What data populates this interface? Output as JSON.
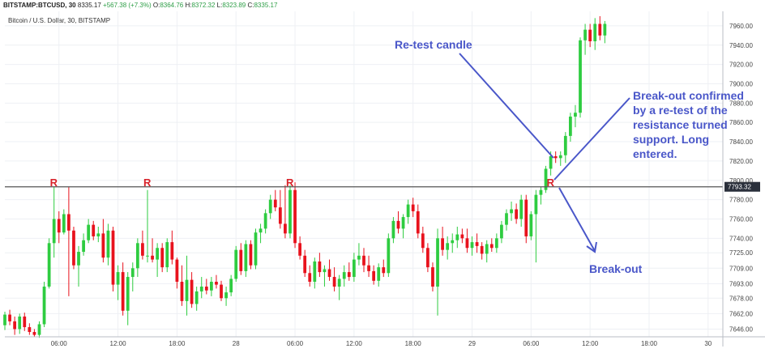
{
  "header": {
    "symbol": "BITSTAMP:BTCUSD, 30",
    "last": "8335.17",
    "change": "+567.38 (+7.3%)",
    "o_label": "O:",
    "o_value": "8364.76",
    "h_label": "H:",
    "h_value": "8372.32",
    "l_label": "L:",
    "l_value": "8323.89",
    "c_label": "C:",
    "c_value": "8335.17"
  },
  "subtitle": "Bitcoin / U.S. Dollar, 30, BITSTAMP",
  "annotations": {
    "retest_label": "Re-test candle",
    "confirm_label": "Break-out confirmed by a re-test of the resistance turned support. Long entered.",
    "breakout_label": "Break-out",
    "r_marker": "R"
  },
  "colors": {
    "up": "#2ecc40",
    "down": "#e8121d",
    "annotation": "#4a57c9",
    "marker": "#d8232a",
    "resistance_line": "#555555",
    "price_tag_bg": "#2a2f3b"
  },
  "chart_data": {
    "type": "candlestick",
    "title": "Bitcoin / U.S. Dollar, 30, BITSTAMP",
    "ylim": [
      7638,
      7975
    ],
    "xlim": [
      0,
      146
    ],
    "grid": true,
    "y_ticks": [
      7646.0,
      7662.0,
      7678.0,
      7693.0,
      7709.0,
      7725.0,
      7740.0,
      7760.0,
      7780.0,
      7800.0,
      7820.0,
      7840.0,
      7860.0,
      7880.0,
      7900.0,
      7920.0,
      7940.0,
      7960.0
    ],
    "x_ticks": [
      {
        "i": 11,
        "label": "06:00"
      },
      {
        "i": 23,
        "label": "12:00"
      },
      {
        "i": 35,
        "label": "18:00"
      },
      {
        "i": 47,
        "label": "28"
      },
      {
        "i": 59,
        "label": "06:00"
      },
      {
        "i": 71,
        "label": "12:00"
      },
      {
        "i": 83,
        "label": "18:00"
      },
      {
        "i": 95,
        "label": "29"
      },
      {
        "i": 107,
        "label": "06:00"
      },
      {
        "i": 119,
        "label": "12:00"
      },
      {
        "i": 131,
        "label": "18:00"
      },
      {
        "i": 143,
        "label": "30"
      }
    ],
    "resistance": 7793.32,
    "resistance_label": "7793.32",
    "r_markers": [
      10,
      29,
      58,
      111
    ],
    "candles": [
      [
        7650,
        7664,
        7645,
        7661
      ],
      [
        7661,
        7666,
        7650,
        7654
      ],
      [
        7654,
        7659,
        7640,
        7646
      ],
      [
        7646,
        7662,
        7641,
        7659
      ],
      [
        7659,
        7663,
        7644,
        7648
      ],
      [
        7648,
        7652,
        7640,
        7643
      ],
      [
        7643,
        7646,
        7638,
        7640
      ],
      [
        7640,
        7654,
        7637,
        7651
      ],
      [
        7651,
        7695,
        7648,
        7690
      ],
      [
        7690,
        7740,
        7688,
        7735
      ],
      [
        7735,
        7793,
        7720,
        7760
      ],
      [
        7760,
        7768,
        7735,
        7746
      ],
      [
        7746,
        7770,
        7744,
        7765
      ],
      [
        7765,
        7793,
        7680,
        7748
      ],
      [
        7748,
        7752,
        7708,
        7712
      ],
      [
        7712,
        7732,
        7690,
        7726
      ],
      [
        7726,
        7745,
        7722,
        7738
      ],
      [
        7738,
        7760,
        7735,
        7754
      ],
      [
        7754,
        7758,
        7738,
        7742
      ],
      [
        7742,
        7752,
        7736,
        7745
      ],
      [
        7745,
        7760,
        7715,
        7720
      ],
      [
        7720,
        7755,
        7712,
        7748
      ],
      [
        7748,
        7752,
        7685,
        7692
      ],
      [
        7692,
        7712,
        7676,
        7705
      ],
      [
        7705,
        7715,
        7660,
        7665
      ],
      [
        7665,
        7705,
        7650,
        7700
      ],
      [
        7700,
        7715,
        7685,
        7709
      ],
      [
        7709,
        7740,
        7700,
        7735
      ],
      [
        7735,
        7748,
        7718,
        7722
      ],
      [
        7722,
        7790,
        7715,
        7722
      ],
      [
        7722,
        7740,
        7715,
        7718
      ],
      [
        7718,
        7735,
        7700,
        7730
      ],
      [
        7730,
        7735,
        7705,
        7710
      ],
      [
        7710,
        7740,
        7705,
        7736
      ],
      [
        7736,
        7748,
        7713,
        7718
      ],
      [
        7718,
        7720,
        7688,
        7695
      ],
      [
        7695,
        7712,
        7670,
        7675
      ],
      [
        7675,
        7722,
        7660,
        7697
      ],
      [
        7697,
        7705,
        7668,
        7672
      ],
      [
        7672,
        7690,
        7665,
        7685
      ],
      [
        7685,
        7700,
        7678,
        7690
      ],
      [
        7690,
        7698,
        7682,
        7686
      ],
      [
        7686,
        7700,
        7680,
        7695
      ],
      [
        7695,
        7702,
        7688,
        7692
      ],
      [
        7692,
        7696,
        7675,
        7678
      ],
      [
        7678,
        7690,
        7670,
        7684
      ],
      [
        7684,
        7702,
        7680,
        7698
      ],
      [
        7698,
        7732,
        7695,
        7728
      ],
      [
        7728,
        7735,
        7702,
        7706
      ],
      [
        7706,
        7738,
        7700,
        7734
      ],
      [
        7734,
        7738,
        7708,
        7712
      ],
      [
        7712,
        7750,
        7708,
        7746
      ],
      [
        7746,
        7755,
        7735,
        7750
      ],
      [
        7750,
        7770,
        7745,
        7766
      ],
      [
        7766,
        7785,
        7760,
        7780
      ],
      [
        7780,
        7790,
        7768,
        7772
      ],
      [
        7772,
        7790,
        7750,
        7755
      ],
      [
        7755,
        7795,
        7740,
        7745
      ],
      [
        7745,
        7795,
        7740,
        7790
      ],
      [
        7790,
        7798,
        7730,
        7735
      ],
      [
        7735,
        7742,
        7718,
        7722
      ],
      [
        7722,
        7728,
        7700,
        7704
      ],
      [
        7704,
        7712,
        7690,
        7695
      ],
      [
        7695,
        7720,
        7688,
        7716
      ],
      [
        7716,
        7725,
        7700,
        7705
      ],
      [
        7705,
        7712,
        7690,
        7708
      ],
      [
        7708,
        7718,
        7696,
        7700
      ],
      [
        7700,
        7710,
        7685,
        7690
      ],
      [
        7690,
        7702,
        7676,
        7698
      ],
      [
        7698,
        7712,
        7690,
        7705
      ],
      [
        7705,
        7715,
        7696,
        7700
      ],
      [
        7700,
        7725,
        7695,
        7718
      ],
      [
        7718,
        7735,
        7712,
        7722
      ],
      [
        7722,
        7730,
        7705,
        7712
      ],
      [
        7712,
        7722,
        7700,
        7706
      ],
      [
        7706,
        7712,
        7692,
        7696
      ],
      [
        7696,
        7714,
        7690,
        7710
      ],
      [
        7710,
        7718,
        7700,
        7704
      ],
      [
        7704,
        7745,
        7700,
        7740
      ],
      [
        7740,
        7762,
        7735,
        7758
      ],
      [
        7758,
        7768,
        7745,
        7750
      ],
      [
        7750,
        7765,
        7740,
        7762
      ],
      [
        7762,
        7780,
        7755,
        7775
      ],
      [
        7775,
        7782,
        7762,
        7768
      ],
      [
        7768,
        7775,
        7740,
        7745
      ],
      [
        7745,
        7752,
        7725,
        7730
      ],
      [
        7730,
        7735,
        7705,
        7710
      ],
      [
        7710,
        7715,
        7685,
        7690
      ],
      [
        7690,
        7750,
        7660,
        7740
      ],
      [
        7740,
        7752,
        7722,
        7728
      ],
      [
        7728,
        7742,
        7718,
        7735
      ],
      [
        7735,
        7745,
        7725,
        7738
      ],
      [
        7738,
        7752,
        7730,
        7744
      ],
      [
        7744,
        7750,
        7735,
        7740
      ],
      [
        7740,
        7750,
        7725,
        7730
      ],
      [
        7730,
        7742,
        7722,
        7736
      ],
      [
        7736,
        7745,
        7725,
        7732
      ],
      [
        7732,
        7736,
        7718,
        7724
      ],
      [
        7724,
        7738,
        7715,
        7734
      ],
      [
        7734,
        7740,
        7726,
        7730
      ],
      [
        7730,
        7745,
        7725,
        7740
      ],
      [
        7740,
        7758,
        7735,
        7754
      ],
      [
        7754,
        7770,
        7748,
        7766
      ],
      [
        7766,
        7778,
        7758,
        7770
      ],
      [
        7770,
        7776,
        7755,
        7760
      ],
      [
        7760,
        7785,
        7752,
        7780
      ],
      [
        7780,
        7785,
        7735,
        7742
      ],
      [
        7742,
        7768,
        7738,
        7765
      ],
      [
        7765,
        7790,
        7715,
        7785
      ],
      [
        7785,
        7793,
        7775,
        7790
      ],
      [
        7790,
        7815,
        7787,
        7812
      ],
      [
        7812,
        7830,
        7805,
        7825
      ],
      [
        7825,
        7830,
        7818,
        7823
      ],
      [
        7823,
        7830,
        7815,
        7826
      ],
      [
        7826,
        7850,
        7818,
        7846
      ],
      [
        7846,
        7870,
        7840,
        7866
      ],
      [
        7866,
        7878,
        7855,
        7870
      ],
      [
        7870,
        7948,
        7865,
        7945
      ],
      [
        7945,
        7962,
        7930,
        7956
      ],
      [
        7956,
        7962,
        7938,
        7944
      ],
      [
        7944,
        7968,
        7935,
        7962
      ],
      [
        7962,
        7970,
        7945,
        7950
      ],
      [
        7950,
        7965,
        7942,
        7962
      ]
    ]
  }
}
